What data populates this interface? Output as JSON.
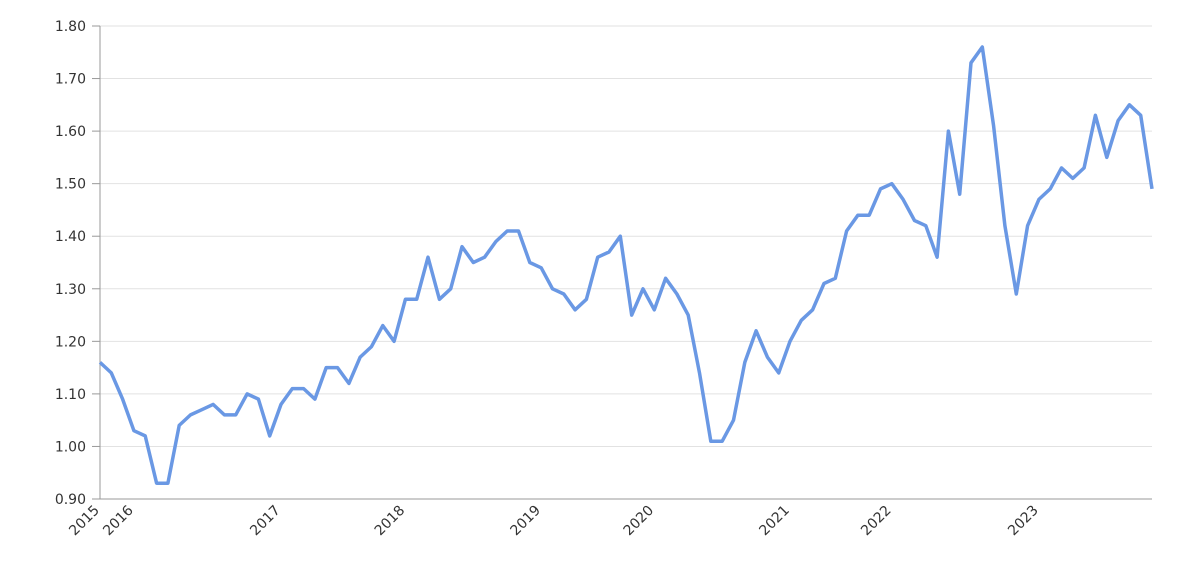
{
  "chart_data": {
    "type": "line",
    "categories": [
      "2015",
      null,
      null,
      "2016",
      null,
      null,
      null,
      null,
      null,
      null,
      null,
      null,
      null,
      null,
      null,
      null,
      "2017",
      null,
      null,
      null,
      null,
      null,
      null,
      null,
      null,
      null,
      null,
      "2018",
      null,
      null,
      null,
      null,
      null,
      null,
      null,
      null,
      null,
      null,
      null,
      "2019",
      null,
      null,
      null,
      null,
      null,
      null,
      null,
      null,
      null,
      "2020",
      null,
      null,
      null,
      null,
      null,
      null,
      null,
      null,
      null,
      null,
      null,
      "2021",
      null,
      null,
      null,
      null,
      null,
      null,
      null,
      null,
      "2022",
      null,
      null,
      null,
      null,
      null,
      null,
      null,
      null,
      null,
      null,
      null,
      null,
      "2023",
      null,
      null,
      null,
      null,
      null,
      null,
      null,
      null,
      null,
      null
    ],
    "series": [
      {
        "color": "#6a98e4",
        "values": [
          1.16,
          1.14,
          1.09,
          1.03,
          1.02,
          0.93,
          0.93,
          1.04,
          1.06,
          1.07,
          1.08,
          1.06,
          1.06,
          1.1,
          1.09,
          1.02,
          1.08,
          1.11,
          1.11,
          1.09,
          1.15,
          1.15,
          1.12,
          1.17,
          1.19,
          1.23,
          1.2,
          1.28,
          1.28,
          1.36,
          1.28,
          1.3,
          1.38,
          1.35,
          1.36,
          1.39,
          1.41,
          1.41,
          1.35,
          1.34,
          1.3,
          1.29,
          1.26,
          1.28,
          1.36,
          1.37,
          1.4,
          1.25,
          1.3,
          1.26,
          1.32,
          1.29,
          1.25,
          1.14,
          1.01,
          1.01,
          1.05,
          1.16,
          1.22,
          1.17,
          1.14,
          1.2,
          1.24,
          1.26,
          1.31,
          1.32,
          1.41,
          1.44,
          1.44,
          1.49,
          1.5,
          1.47,
          1.43,
          1.42,
          1.36,
          1.6,
          1.48,
          1.73,
          1.76,
          1.61,
          1.42,
          1.29,
          1.42,
          1.47,
          1.49,
          1.53,
          1.51,
          1.53,
          1.63,
          1.55,
          1.62,
          1.65,
          1.63,
          1.49
        ]
      }
    ],
    "ylim": [
      0.9,
      1.8
    ],
    "yticks": [
      {
        "value": 0.9,
        "label": "0.90"
      },
      {
        "value": 1.0,
        "label": "1.00"
      },
      {
        "value": 1.1,
        "label": "1.10"
      },
      {
        "value": 1.2,
        "label": "1.20"
      },
      {
        "value": 1.3,
        "label": "1.30"
      },
      {
        "value": 1.4,
        "label": "1.40"
      },
      {
        "value": 1.5,
        "label": "1.50"
      },
      {
        "value": 1.6,
        "label": "1.60"
      },
      {
        "value": 1.7,
        "label": "1.70"
      },
      {
        "value": 1.8,
        "label": "1.80"
      }
    ],
    "grid": true
  }
}
